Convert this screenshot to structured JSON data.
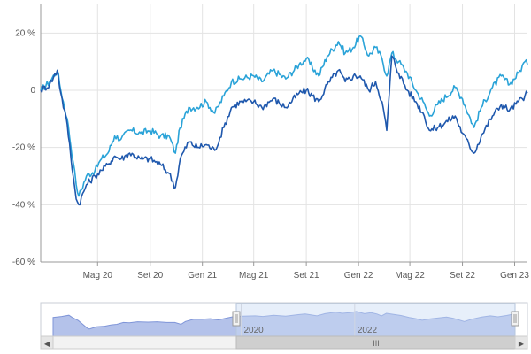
{
  "chart_data": {
    "type": "line",
    "title": "",
    "xlabel": "",
    "ylabel": "",
    "x_range": [
      "2019-12-20",
      "2023-01-31"
    ],
    "ylim": [
      -60,
      30
    ],
    "y_ticks": [
      20,
      0,
      -20,
      -40,
      -60
    ],
    "y_tick_labels": [
      "20 %",
      "0",
      "-20 %",
      "-40 %",
      "-60 %"
    ],
    "x_ticks": [
      "2020-05-01",
      "2020-09-01",
      "2021-01-01",
      "2021-05-01",
      "2021-09-01",
      "2022-01-01",
      "2022-05-01",
      "2022-09-01",
      "2023-01-01"
    ],
    "x_tick_labels": [
      "Mag 20",
      "Set 20",
      "Gen 21",
      "Mag 21",
      "Set 21",
      "Gen 22",
      "Mag 22",
      "Set 22",
      "Gen 23"
    ],
    "grid": true,
    "legend": "none",
    "series": [
      {
        "color": "#2aa3d8",
        "points": [
          [
            "2019-12-20",
            0
          ],
          [
            "2020-01-10",
            3
          ],
          [
            "2020-01-28",
            7
          ],
          [
            "2020-02-05",
            0
          ],
          [
            "2020-02-20",
            -10
          ],
          [
            "2020-03-05",
            -25
          ],
          [
            "2020-03-12",
            -33
          ],
          [
            "2020-03-18",
            -37
          ],
          [
            "2020-04-05",
            -30
          ],
          [
            "2020-04-25",
            -28
          ],
          [
            "2020-05-10",
            -24
          ],
          [
            "2020-05-25",
            -22
          ],
          [
            "2020-06-10",
            -16
          ],
          [
            "2020-06-25",
            -17
          ],
          [
            "2020-07-15",
            -14
          ],
          [
            "2020-08-10",
            -15
          ],
          [
            "2020-09-01",
            -14
          ],
          [
            "2020-09-25",
            -16
          ],
          [
            "2020-10-15",
            -16
          ],
          [
            "2020-10-30",
            -22
          ],
          [
            "2020-11-10",
            -13
          ],
          [
            "2020-11-30",
            -6
          ],
          [
            "2020-12-20",
            -6
          ],
          [
            "2021-01-10",
            -4
          ],
          [
            "2021-01-30",
            -8
          ],
          [
            "2021-02-20",
            -2
          ],
          [
            "2021-03-10",
            3
          ],
          [
            "2021-04-01",
            4
          ],
          [
            "2021-05-01",
            5
          ],
          [
            "2021-05-20",
            3
          ],
          [
            "2021-06-15",
            7
          ],
          [
            "2021-07-15",
            4
          ],
          [
            "2021-08-15",
            9
          ],
          [
            "2021-09-01",
            11
          ],
          [
            "2021-09-30",
            5
          ],
          [
            "2021-10-20",
            12
          ],
          [
            "2021-11-15",
            17
          ],
          [
            "2021-12-01",
            13
          ],
          [
            "2021-12-20",
            15
          ],
          [
            "2022-01-05",
            19
          ],
          [
            "2022-01-25",
            12
          ],
          [
            "2022-02-10",
            15
          ],
          [
            "2022-02-25",
            11
          ],
          [
            "2022-03-08",
            5
          ],
          [
            "2022-03-20",
            13
          ],
          [
            "2022-04-05",
            10
          ],
          [
            "2022-04-25",
            6
          ],
          [
            "2022-05-15",
            0
          ],
          [
            "2022-06-01",
            -4
          ],
          [
            "2022-06-16",
            -9
          ],
          [
            "2022-07-05",
            -5
          ],
          [
            "2022-08-15",
            1
          ],
          [
            "2022-09-01",
            -3
          ],
          [
            "2022-09-28",
            -13
          ],
          [
            "2022-10-15",
            -6
          ],
          [
            "2022-11-10",
            1
          ],
          [
            "2022-12-01",
            5
          ],
          [
            "2022-12-20",
            2
          ],
          [
            "2023-01-10",
            6
          ],
          [
            "2023-01-25",
            10
          ],
          [
            "2023-01-31",
            9
          ]
        ]
      },
      {
        "color": "#1f58ad",
        "points": [
          [
            "2019-12-20",
            0
          ],
          [
            "2020-01-10",
            2
          ],
          [
            "2020-01-28",
            7
          ],
          [
            "2020-02-05",
            -1
          ],
          [
            "2020-02-20",
            -12
          ],
          [
            "2020-03-05",
            -30
          ],
          [
            "2020-03-12",
            -38
          ],
          [
            "2020-03-18",
            -40
          ],
          [
            "2020-04-05",
            -33
          ],
          [
            "2020-04-25",
            -30
          ],
          [
            "2020-05-10",
            -28
          ],
          [
            "2020-05-25",
            -26
          ],
          [
            "2020-06-10",
            -23
          ],
          [
            "2020-06-25",
            -24
          ],
          [
            "2020-07-15",
            -22
          ],
          [
            "2020-08-10",
            -24
          ],
          [
            "2020-09-01",
            -24
          ],
          [
            "2020-09-25",
            -26
          ],
          [
            "2020-10-15",
            -29
          ],
          [
            "2020-10-30",
            -34
          ],
          [
            "2020-11-10",
            -24
          ],
          [
            "2020-11-30",
            -18
          ],
          [
            "2020-12-20",
            -20
          ],
          [
            "2021-01-10",
            -19
          ],
          [
            "2021-01-30",
            -21
          ],
          [
            "2021-02-20",
            -13
          ],
          [
            "2021-03-10",
            -6
          ],
          [
            "2021-04-01",
            -4
          ],
          [
            "2021-05-01",
            -4
          ],
          [
            "2021-05-20",
            -6
          ],
          [
            "2021-06-15",
            -3
          ],
          [
            "2021-07-15",
            -6
          ],
          [
            "2021-08-15",
            -1
          ],
          [
            "2021-09-01",
            0
          ],
          [
            "2021-09-30",
            -4
          ],
          [
            "2021-10-20",
            2
          ],
          [
            "2021-11-15",
            7
          ],
          [
            "2021-12-01",
            3
          ],
          [
            "2021-12-20",
            5
          ],
          [
            "2022-01-05",
            5
          ],
          [
            "2022-01-25",
            0
          ],
          [
            "2022-02-10",
            3
          ],
          [
            "2022-02-25",
            -4
          ],
          [
            "2022-03-08",
            -14
          ],
          [
            "2022-03-20",
            12
          ],
          [
            "2022-04-05",
            6
          ],
          [
            "2022-04-25",
            0
          ],
          [
            "2022-05-15",
            -4
          ],
          [
            "2022-06-01",
            -8
          ],
          [
            "2022-06-16",
            -14
          ],
          [
            "2022-07-05",
            -13
          ],
          [
            "2022-08-15",
            -9
          ],
          [
            "2022-09-01",
            -15
          ],
          [
            "2022-09-28",
            -22
          ],
          [
            "2022-10-15",
            -16
          ],
          [
            "2022-11-10",
            -9
          ],
          [
            "2022-12-01",
            -5
          ],
          [
            "2022-12-20",
            -7
          ],
          [
            "2023-01-10",
            -4
          ],
          [
            "2023-01-25",
            -2
          ],
          [
            "2023-01-31",
            -1
          ]
        ]
      }
    ],
    "navigator": {
      "x_tick_labels": [
        "2020",
        "2022"
      ],
      "x_ticks": [
        "2020-01-01",
        "2022-01-01"
      ],
      "selection": [
        "2019-12-20",
        "2023-01-31"
      ]
    }
  },
  "scrollbar": {
    "left_arrow": "◀",
    "right_arrow": "▶",
    "grip": "III"
  }
}
